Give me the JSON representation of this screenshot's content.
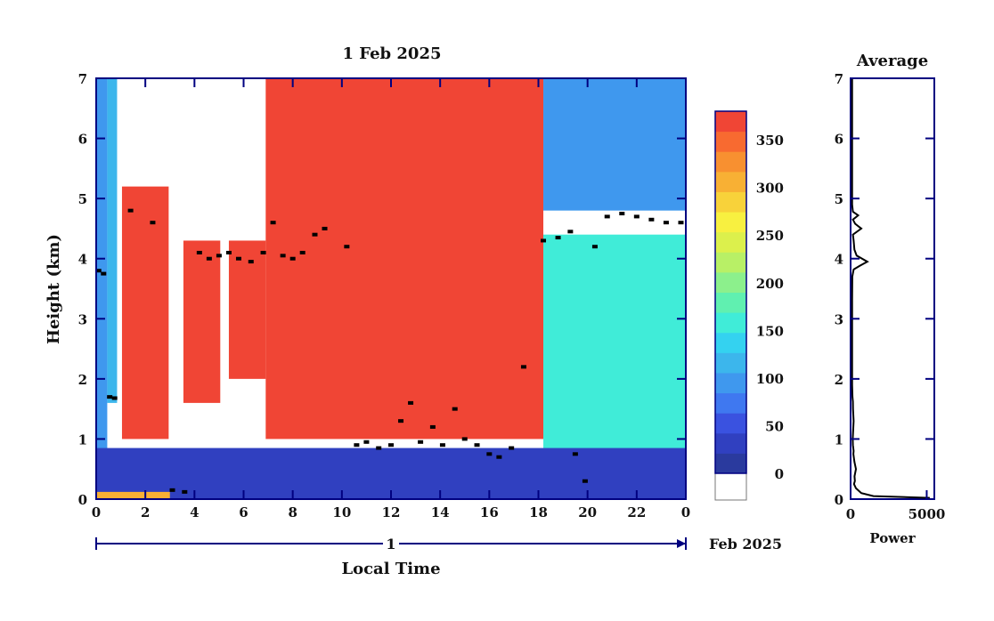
{
  "chart_data": [
    {
      "type": "heatmap",
      "title": "1 Feb 2025",
      "xlabel": "Local Time",
      "ylabel": "Height (km)",
      "xlim": [
        0,
        24
      ],
      "ylim": [
        0,
        7
      ],
      "x_ticks": [
        "0",
        "2",
        "4",
        "6",
        "8",
        "10",
        "12",
        "14",
        "16",
        "18",
        "20",
        "22",
        "0"
      ],
      "y_ticks": [
        "0",
        "1",
        "2",
        "3",
        "4",
        "5",
        "6",
        "7"
      ],
      "date_bar": {
        "day": "1",
        "month_label": "Feb 2025"
      },
      "colorbar": {
        "min": 0,
        "max": 380,
        "tick_labels": [
          "0",
          "50",
          "100",
          "150",
          "200",
          "250",
          "300",
          "350"
        ],
        "colors": [
          "#2a3a9e",
          "#3040c0",
          "#3a52e0",
          "#3f78f0",
          "#3f98ee",
          "#3cb6ec",
          "#34d2f0",
          "#40ecd8",
          "#60f0b0",
          "#8cf08c",
          "#b8f066",
          "#dcf04c",
          "#f8f040",
          "#f8d23a",
          "#f8b034",
          "#f89030",
          "#f86a30",
          "#f04535"
        ]
      },
      "regions": [
        {
          "x0": 0,
          "x1": 0.45,
          "y0": 0,
          "y1": 7,
          "value": 90
        },
        {
          "x0": 0.45,
          "x1": 0.85,
          "y0": 1.6,
          "y1": 7,
          "value": 120
        },
        {
          "x0": 1.05,
          "x1": 2.95,
          "y0": 1.0,
          "y1": 5.2,
          "value": 370
        },
        {
          "x0": 3.55,
          "x1": 5.05,
          "y0": 1.6,
          "y1": 4.3,
          "value": 370
        },
        {
          "x0": 5.4,
          "x1": 6.9,
          "y0": 2.0,
          "y1": 4.3,
          "value": 360
        },
        {
          "x0": 6.9,
          "x1": 18.2,
          "y0": 1.0,
          "y1": 7,
          "value": 370
        },
        {
          "x0": 18.2,
          "x1": 24,
          "y0": 0.7,
          "y1": 4.4,
          "value": 150
        },
        {
          "x0": 18.2,
          "x1": 24,
          "y0": 4.8,
          "y1": 7,
          "value": 100
        },
        {
          "x0": 0,
          "x1": 24,
          "y0": 0,
          "y1": 0.85,
          "value": 40
        },
        {
          "x0": 0,
          "x1": 3.0,
          "y0": 0,
          "y1": 0.12,
          "value": 300
        }
      ],
      "cloud_base_points": [
        {
          "x": 0.1,
          "y": 3.8
        },
        {
          "x": 0.3,
          "y": 3.75
        },
        {
          "x": 0.55,
          "y": 1.7
        },
        {
          "x": 0.75,
          "y": 1.68
        },
        {
          "x": 1.4,
          "y": 4.8
        },
        {
          "x": 2.3,
          "y": 4.6
        },
        {
          "x": 3.1,
          "y": 0.15
        },
        {
          "x": 3.6,
          "y": 0.12
        },
        {
          "x": 4.2,
          "y": 4.1
        },
        {
          "x": 4.6,
          "y": 4.0
        },
        {
          "x": 5.0,
          "y": 4.05
        },
        {
          "x": 5.4,
          "y": 4.1
        },
        {
          "x": 5.8,
          "y": 4.0
        },
        {
          "x": 6.3,
          "y": 3.95
        },
        {
          "x": 6.8,
          "y": 4.1
        },
        {
          "x": 7.2,
          "y": 4.6
        },
        {
          "x": 7.6,
          "y": 4.05
        },
        {
          "x": 8.0,
          "y": 4.0
        },
        {
          "x": 8.4,
          "y": 4.1
        },
        {
          "x": 8.9,
          "y": 4.4
        },
        {
          "x": 9.3,
          "y": 4.5
        },
        {
          "x": 10.2,
          "y": 4.2
        },
        {
          "x": 10.6,
          "y": 0.9
        },
        {
          "x": 11.0,
          "y": 0.95
        },
        {
          "x": 11.5,
          "y": 0.85
        },
        {
          "x": 12.0,
          "y": 0.9
        },
        {
          "x": 12.4,
          "y": 1.3
        },
        {
          "x": 12.8,
          "y": 1.6
        },
        {
          "x": 13.2,
          "y": 0.95
        },
        {
          "x": 13.7,
          "y": 1.2
        },
        {
          "x": 14.1,
          "y": 0.9
        },
        {
          "x": 14.6,
          "y": 1.5
        },
        {
          "x": 15.0,
          "y": 1.0
        },
        {
          "x": 15.5,
          "y": 0.9
        },
        {
          "x": 16.0,
          "y": 0.75
        },
        {
          "x": 16.4,
          "y": 0.7
        },
        {
          "x": 16.9,
          "y": 0.85
        },
        {
          "x": 17.4,
          "y": 2.2
        },
        {
          "x": 18.2,
          "y": 4.3
        },
        {
          "x": 18.8,
          "y": 4.35
        },
        {
          "x": 19.3,
          "y": 4.45
        },
        {
          "x": 19.5,
          "y": 0.75
        },
        {
          "x": 19.9,
          "y": 0.3
        },
        {
          "x": 20.3,
          "y": 4.2
        },
        {
          "x": 20.8,
          "y": 4.7
        },
        {
          "x": 21.4,
          "y": 4.75
        },
        {
          "x": 22.0,
          "y": 4.7
        },
        {
          "x": 22.6,
          "y": 4.65
        },
        {
          "x": 23.2,
          "y": 4.6
        },
        {
          "x": 23.8,
          "y": 4.6
        }
      ]
    },
    {
      "type": "line",
      "title": "Average",
      "xlabel": "Power",
      "xlim": [
        0,
        5500
      ],
      "ylim": [
        0,
        7
      ],
      "x_ticks": [
        "0",
        "5000"
      ],
      "y_ticks": [
        "0",
        "1",
        "2",
        "3",
        "4",
        "5",
        "6",
        "7"
      ],
      "series": [
        {
          "x": [
            5200,
            1500,
            700,
            350,
            220,
            280,
            260,
            350,
            250,
            180,
            200,
            150,
            140,
            200,
            160,
            150,
            120,
            100,
            100,
            100,
            100,
            110,
            200,
            600,
            1100,
            400,
            250,
            200,
            150,
            700,
            300,
            150,
            500,
            150,
            100,
            100,
            100,
            100,
            100,
            100,
            100
          ],
          "y": [
            0.02,
            0.05,
            0.1,
            0.18,
            0.25,
            0.3,
            0.38,
            0.5,
            0.62,
            0.75,
            0.8,
            0.9,
            1.0,
            1.3,
            1.5,
            1.62,
            1.7,
            1.9,
            2.3,
            2.8,
            3.3,
            3.7,
            3.82,
            3.88,
            3.95,
            4.05,
            4.15,
            4.3,
            4.4,
            4.5,
            4.58,
            4.65,
            4.72,
            4.78,
            4.9,
            5.2,
            5.6,
            6.0,
            6.4,
            6.8,
            7.0
          ]
        }
      ]
    }
  ]
}
